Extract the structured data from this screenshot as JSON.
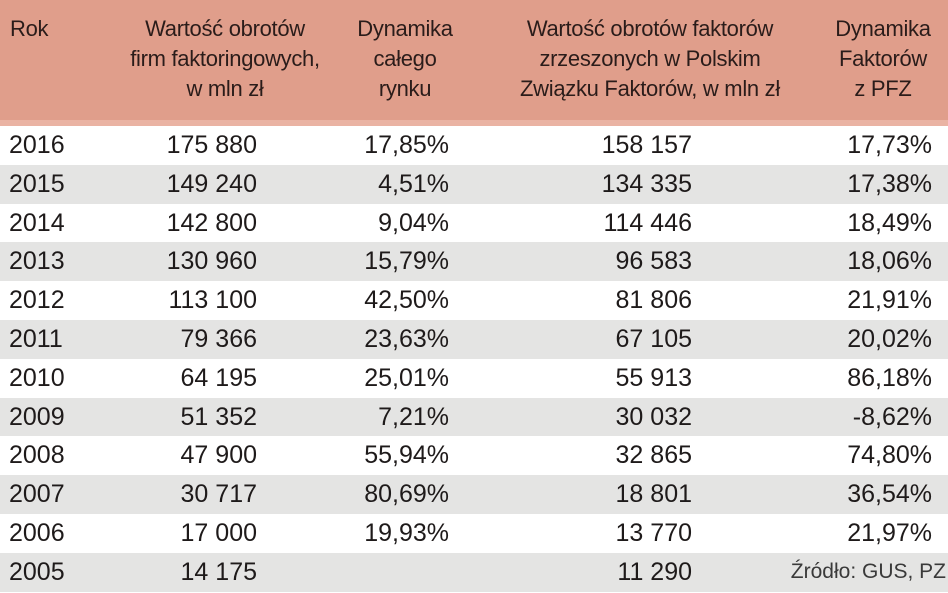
{
  "header": {
    "rok": "Rok",
    "col1": [
      "Wartość obrotów",
      "firm faktoringowych,",
      "w mln zł"
    ],
    "col2": [
      "Dynamika",
      "całego",
      "rynku"
    ],
    "col3": [
      "Wartość obrotów faktorów",
      "zrzeszonych w Polskim",
      "Związku Faktorów, w mln zł"
    ],
    "col4": [
      "Dynamika",
      "Faktorów",
      "z PFZ"
    ]
  },
  "rows": [
    {
      "year": "2016",
      "v1": "175 880",
      "d1": "17,85%",
      "v2": "158 157",
      "d2": "17,73%"
    },
    {
      "year": "2015",
      "v1": "149 240",
      "d1": "4,51%",
      "v2": "134 335",
      "d2": "17,38%"
    },
    {
      "year": "2014",
      "v1": "142 800",
      "d1": "9,04%",
      "v2": "114 446",
      "d2": "18,49%"
    },
    {
      "year": "2013",
      "v1": "130 960",
      "d1": "15,79%",
      "v2": "96 583",
      "d2": "18,06%"
    },
    {
      "year": "2012",
      "v1": "113 100",
      "d1": "42,50%",
      "v2": "81 806",
      "d2": "21,91%"
    },
    {
      "year": "2011",
      "v1": "79 366",
      "d1": "23,63%",
      "v2": "67 105",
      "d2": "20,02%"
    },
    {
      "year": "2010",
      "v1": "64 195",
      "d1": "25,01%",
      "v2": "55 913",
      "d2": "86,18%"
    },
    {
      "year": "2009",
      "v1": "51 352",
      "d1": "7,21%",
      "v2": "30 032",
      "d2": "-8,62%"
    },
    {
      "year": "2008",
      "v1": "47 900",
      "d1": "55,94%",
      "v2": "32 865",
      "d2": "74,80%"
    },
    {
      "year": "2007",
      "v1": "30 717",
      "d1": "80,69%",
      "v2": "18 801",
      "d2": "36,54%"
    },
    {
      "year": "2006",
      "v1": "17 000",
      "d1": "19,93%",
      "v2": "13 770",
      "d2": "21,97%"
    },
    {
      "year": "2005",
      "v1": "14 175",
      "d1": "",
      "v2": "11 290",
      "d2": ""
    }
  ],
  "source": "Źródło: GUS, PZ",
  "colors": {
    "header_bg": "#e09e8b",
    "header_border": "#eab3a3",
    "row_alt_bg": "#e4e4e3",
    "row_bg": "#ffffff"
  }
}
